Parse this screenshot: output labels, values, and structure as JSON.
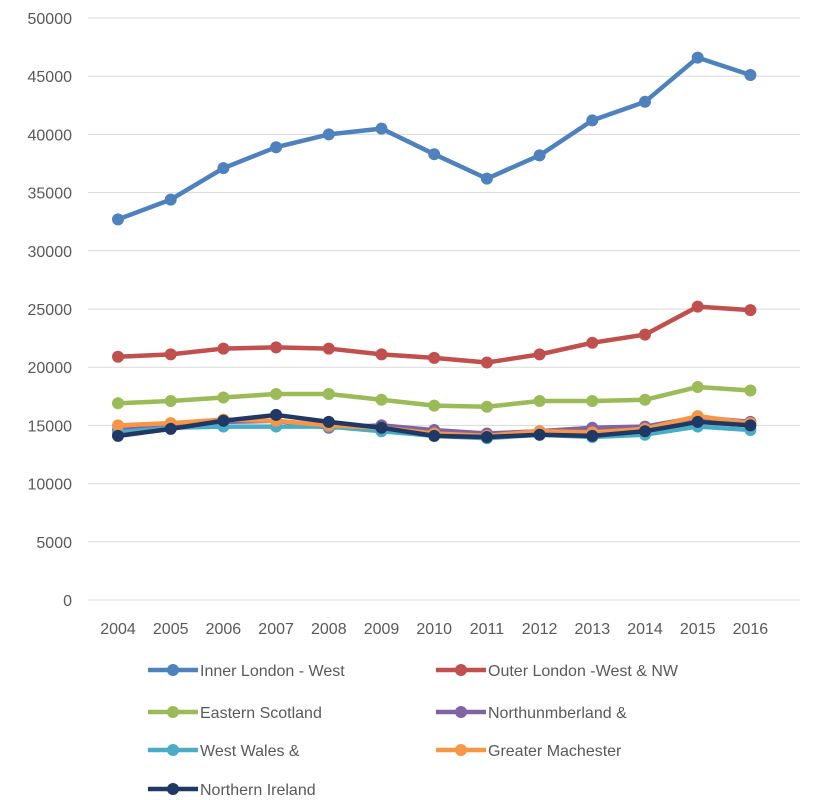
{
  "chart_data": {
    "type": "line",
    "title": "",
    "xlabel": "",
    "ylabel": "",
    "ylim": [
      0,
      50000
    ],
    "yticks": [
      "50000",
      "45000",
      "40000",
      "35000",
      "30000",
      "25000",
      "20000",
      "15000",
      "10000",
      "5000",
      "0"
    ],
    "categories": [
      "2004",
      "2005",
      "2006",
      "2007",
      "2008",
      "2009",
      "2010",
      "2011",
      "2012",
      "2013",
      "2014",
      "2015",
      "2016"
    ],
    "grid": "horizontal",
    "legend_position": "bottom",
    "series": [
      {
        "name": "Inner London - West",
        "color": "#4F81BD",
        "values": [
          32700,
          34400,
          37100,
          38900,
          40000,
          40500,
          38300,
          36200,
          38200,
          41200,
          42800,
          46600,
          45100
        ]
      },
      {
        "name": "Outer London -West & NW",
        "color": "#C0504D",
        "values": [
          20900,
          21100,
          21600,
          21700,
          21600,
          21100,
          20800,
          20400,
          21100,
          22100,
          22800,
          25200,
          24900
        ]
      },
      {
        "name": "Eastern Scotland",
        "color": "#9BBB59",
        "values": [
          16900,
          17100,
          17400,
          17700,
          17700,
          17200,
          16700,
          16600,
          17100,
          17100,
          17200,
          18300,
          18000
        ]
      },
      {
        "name": "Northunmberland &",
        "color": "#8064A2",
        "values": [
          14600,
          14900,
          15300,
          15400,
          14800,
          15000,
          14600,
          14300,
          14500,
          14800,
          14900,
          15700,
          15300
        ]
      },
      {
        "name": "West Wales &",
        "color": "#4BACC6",
        "values": [
          14400,
          14800,
          14900,
          14900,
          14900,
          14500,
          14100,
          13900,
          14200,
          14000,
          14200,
          14900,
          14600
        ]
      },
      {
        "name": "Greater Machester",
        "color": "#F79646",
        "values": [
          15000,
          15200,
          15500,
          15400,
          15000,
          14800,
          14300,
          14100,
          14500,
          14400,
          14700,
          15800,
          15200
        ]
      },
      {
        "name": "Northern Ireland",
        "color": "#1F3864",
        "values": [
          14100,
          14700,
          15400,
          15900,
          15300,
          14800,
          14100,
          14000,
          14200,
          14100,
          14500,
          15300,
          15000
        ]
      }
    ]
  }
}
